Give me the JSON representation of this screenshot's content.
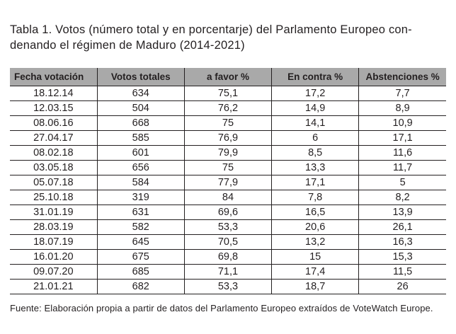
{
  "title": {
    "line1": "Tabla 1. Votos (número total y en porcentarje) del Parlamento Europeo con-",
    "line2": "denando el régimen de Maduro (2014-2021)"
  },
  "table": {
    "headers": [
      "Fecha votación",
      "Votos totales",
      "a favor %",
      "En contra %",
      "Abstenciones %"
    ],
    "rows": [
      [
        "18.12.14",
        "634",
        "75,1",
        "17,2",
        "7,7"
      ],
      [
        "12.03.15",
        "504",
        "76,2",
        "14,9",
        "8,9"
      ],
      [
        "08.06.16",
        "668",
        "75",
        "14,1",
        "10,9"
      ],
      [
        "27.04.17",
        "585",
        "76,9",
        "6",
        "17,1"
      ],
      [
        "08.02.18",
        "601",
        "79,9",
        "8,5",
        "11,6"
      ],
      [
        "03.05.18",
        "656",
        "75",
        "13,3",
        "11,7"
      ],
      [
        "05.07.18",
        "584",
        "77,9",
        "17,1",
        "5"
      ],
      [
        "25.10.18",
        "319",
        "84",
        "7,8",
        "8,2"
      ],
      [
        "31.01.19",
        "631",
        "69,6",
        "16,5",
        "13,9"
      ],
      [
        "28.03.19",
        "582",
        "53,3",
        "20,6",
        "26,1"
      ],
      [
        "18.07.19",
        "645",
        "70,5",
        "13,2",
        "16,3"
      ],
      [
        "16.01.20",
        "675",
        "69,8",
        "15",
        "15,3"
      ],
      [
        "09.07.20",
        "685",
        "71,1",
        "17,4",
        "11,5"
      ],
      [
        "21.01.21",
        "682",
        "53,3",
        "18,7",
        "26"
      ]
    ]
  },
  "footer": "Fuente: Elaboración propia a partir de datos del Parlamento Europeo extraídos de VoteWatch Europe.",
  "colors": {
    "header_background": "#a9a9a9",
    "border": "#231f20",
    "text": "#231f20",
    "page_background": "#ffffff"
  }
}
